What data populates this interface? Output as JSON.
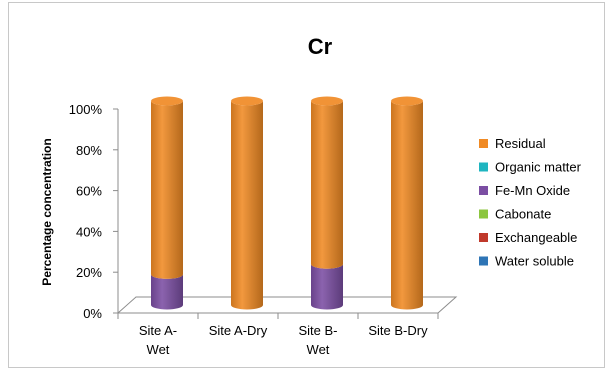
{
  "chart_data": {
    "type": "bar",
    "stacked": true,
    "percent_stacked": true,
    "three_d": true,
    "title": "Cr",
    "xlabel": "",
    "ylabel": "Percentage concentration",
    "ylim": [
      0,
      100
    ],
    "yticks": [
      "0%",
      "20%",
      "40%",
      "60%",
      "80%",
      "100%"
    ],
    "categories": [
      "Site A-\nWet",
      "Site A-Dry",
      "Site B-\nWet",
      "Site B-Dry"
    ],
    "legend_position": "right",
    "grid": false,
    "series": [
      {
        "name": "Water soluble",
        "color": "#2e75b6",
        "values": [
          0,
          0,
          0,
          0
        ]
      },
      {
        "name": "Exchangeable",
        "color": "#c0392b",
        "values": [
          0,
          0,
          0,
          0
        ]
      },
      {
        "name": "Cabonate",
        "color": "#8cc63f",
        "values": [
          0,
          0,
          0,
          0
        ]
      },
      {
        "name": "Fe-Mn Oxide",
        "color": "#7b4ea3",
        "values": [
          15,
          0,
          20,
          0
        ]
      },
      {
        "name": "Organic matter",
        "color": "#1fb5c0",
        "values": [
          0,
          0,
          0,
          0
        ]
      },
      {
        "name": "Residual",
        "color": "#f08a24",
        "values": [
          85,
          100,
          80,
          100
        ]
      }
    ]
  }
}
